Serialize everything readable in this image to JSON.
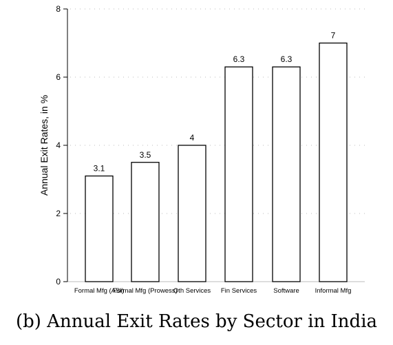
{
  "caption": "(b) Annual Exit Rates by Sector in India",
  "chart_data": {
    "type": "bar",
    "categories": [
      "Formal Mfg (ASI)",
      "Formal Mfg (Prowess)",
      "Oth Services",
      "Fin Services",
      "Software",
      "Informal Mfg"
    ],
    "values": [
      3.1,
      3.5,
      4,
      6.3,
      6.3,
      7
    ],
    "value_labels": [
      "3.1",
      "3.5",
      "4",
      "6.3",
      "6.3",
      "7"
    ],
    "ylabel": "Annual Exit Rates, in %",
    "xlabel": "",
    "ylim": [
      0,
      8
    ],
    "yticks": [
      0,
      2,
      4,
      6,
      8
    ],
    "grid": "horizontal dotted",
    "bar_fill": "#ffffff",
    "bar_stroke": "#000000",
    "grid_color": "#bbbbbb"
  }
}
